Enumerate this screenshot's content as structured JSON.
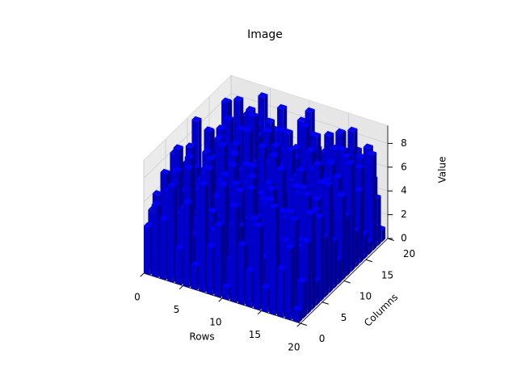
{
  "chart_data": {
    "type": "bar3d",
    "title": "Image",
    "xlabel": "Rows",
    "ylabel": "Columns",
    "zlabel": "Value",
    "color": "#0000ff",
    "xlim": [
      0,
      20
    ],
    "xticks": [
      0,
      5,
      10,
      15,
      20
    ],
    "ylim": [
      0,
      20
    ],
    "yticks": [
      0,
      5,
      10,
      15,
      20
    ],
    "zlim": [
      0,
      9.5
    ],
    "zticks": [
      0,
      2,
      4,
      6,
      8
    ],
    "grid": true,
    "values": [
      [
        4,
        5,
        6,
        2,
        7,
        3,
        8,
        1,
        5,
        6,
        2,
        9,
        4,
        3,
        7,
        5,
        1,
        6,
        8,
        2
      ],
      [
        6,
        3,
        8,
        5,
        2,
        9,
        4,
        7,
        1,
        6,
        3,
        5,
        8,
        2,
        4,
        7,
        9,
        1,
        5,
        3
      ],
      [
        5,
        7,
        2,
        8,
        6,
        1,
        9,
        3,
        5,
        4,
        7,
        2,
        6,
        8,
        1,
        3,
        5,
        9,
        2,
        7
      ],
      [
        8,
        2,
        5,
        3,
        9,
        4,
        1,
        6,
        8,
        2,
        5,
        7,
        3,
        9,
        6,
        1,
        4,
        2,
        8,
        5
      ],
      [
        3,
        6,
        9,
        1,
        4,
        7,
        5,
        8,
        2,
        9,
        1,
        4,
        6,
        3,
        8,
        5,
        2,
        7,
        4,
        9
      ],
      [
        7,
        4,
        1,
        6,
        8,
        2,
        3,
        5,
        9,
        1,
        6,
        8,
        2,
        5,
        3,
        9,
        7,
        4,
        1,
        6
      ],
      [
        2,
        8,
        5,
        9,
        3,
        6,
        7,
        1,
        4,
        8,
        3,
        2,
        9,
        6,
        5,
        4,
        1,
        8,
        7,
        3
      ],
      [
        9,
        1,
        6,
        4,
        5,
        8,
        2,
        9,
        3,
        7,
        5,
        6,
        1,
        4,
        2,
        8,
        6,
        3,
        9,
        5
      ],
      [
        4,
        5,
        3,
        7,
        1,
        9,
        6,
        2,
        8,
        5,
        4,
        1,
        7,
        9,
        3,
        2,
        8,
        6,
        4,
        1
      ],
      [
        6,
        9,
        2,
        5,
        8,
        3,
        4,
        7,
        1,
        3,
        9,
        5,
        2,
        8,
        6,
        7,
        3,
        1,
        5,
        8
      ],
      [
        1,
        3,
        7,
        8,
        2,
        5,
        9,
        4,
        6,
        2,
        8,
        3,
        5,
        1,
        9,
        4,
        7,
        2,
        6,
        9
      ],
      [
        8,
        6,
        4,
        2,
        9,
        1,
        5,
        3,
        7,
        9,
        1,
        6,
        4,
        7,
        2,
        5,
        9,
        8,
        3,
        4
      ],
      [
        5,
        2,
        9,
        6,
        3,
        7,
        8,
        1,
        4,
        6,
        2,
        9,
        8,
        3,
        5,
        1,
        4,
        7,
        2,
        6
      ],
      [
        3,
        7,
        1,
        4,
        6,
        8,
        2,
        9,
        5,
        1,
        7,
        4,
        3,
        6,
        8,
        9,
        2,
        5,
        8,
        1
      ],
      [
        7,
        4,
        8,
        9,
        1,
        3,
        6,
        5,
        2,
        8,
        4,
        1,
        9,
        2,
        7,
        6,
        5,
        3,
        1,
        8
      ],
      [
        2,
        9,
        5,
        1,
        7,
        6,
        3,
        8,
        9,
        4,
        6,
        8,
        2,
        5,
        1,
        3,
        8,
        9,
        6,
        2
      ],
      [
        9,
        1,
        3,
        7,
        4,
        2,
        8,
        6,
        3,
        5,
        9,
        2,
        7,
        8,
        4,
        1,
        6,
        2,
        9,
        7
      ],
      [
        4,
        6,
        8,
        3,
        5,
        9,
        1,
        2,
        7,
        8,
        3,
        6,
        5,
        1,
        9,
        8,
        2,
        4,
        7,
        3
      ],
      [
        6,
        8,
        2,
        5,
        9,
        4,
        7,
        3,
        1,
        6,
        2,
        8,
        4,
        9,
        3,
        5,
        7,
        1,
        8,
        5
      ],
      [
        1,
        3,
        6,
        8,
        2,
        7,
        5,
        9,
        4,
        2,
        7,
        5,
        9,
        3,
        6,
        2,
        1,
        8,
        4,
        1
      ]
    ]
  }
}
